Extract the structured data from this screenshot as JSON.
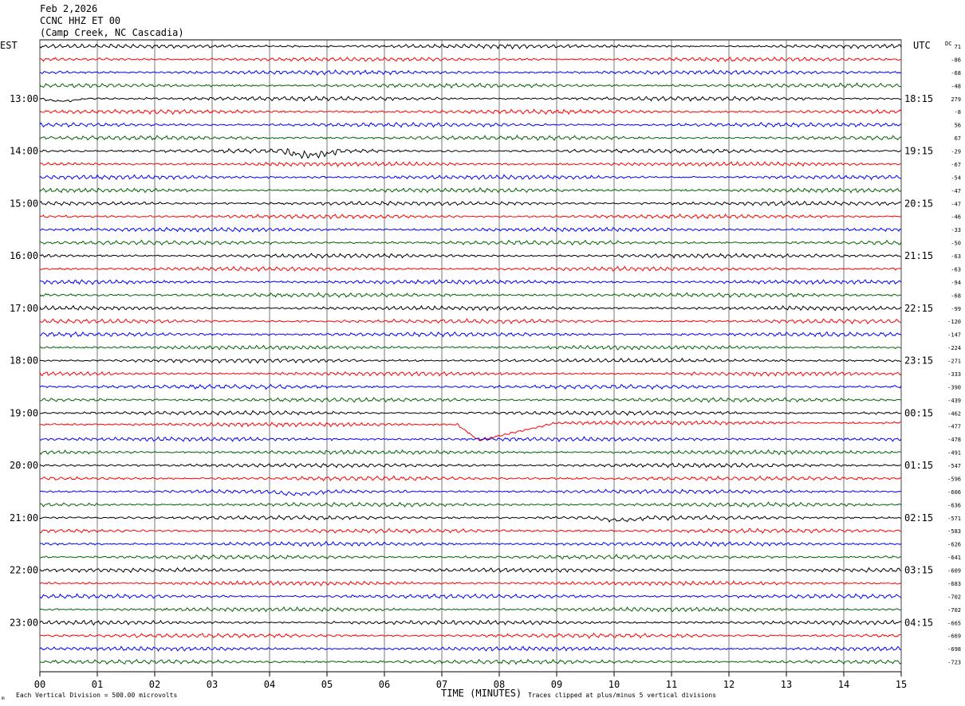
{
  "header": {
    "date": "Feb 2,2026",
    "station": "CCNC HHZ ET 00",
    "location": "(Camp Creek, NC Cascadia)"
  },
  "chart_data": {
    "type": "line",
    "title": "",
    "left_axis_label": "EST",
    "right_axis_label": "UTC",
    "dc_label": "DC",
    "xlabel": "TIME (MINUTES)",
    "x_ticks": [
      "00",
      "01",
      "02",
      "03",
      "04",
      "05",
      "06",
      "07",
      "08",
      "09",
      "10",
      "11",
      "12",
      "13",
      "14",
      "15"
    ],
    "xlim": [
      0,
      15
    ],
    "left_hour_labels": [
      "13:00",
      "14:00",
      "15:00",
      "16:00",
      "17:00",
      "18:00",
      "19:00",
      "20:00",
      "21:00",
      "22:00",
      "23:00"
    ],
    "right_hour_labels": [
      "18:15",
      "19:15",
      "20:15",
      "21:15",
      "22:15",
      "23:15",
      "00:15",
      "01:15",
      "02:15",
      "03:15",
      "04:15"
    ],
    "first_labeled_row": 4,
    "rows_per_hour": 4,
    "dc_offsets": [
      71,
      -86,
      -68,
      -48,
      279,
      -8,
      56,
      67,
      -29,
      -67,
      -54,
      -47,
      -47,
      -46,
      -33,
      -50,
      -63,
      -63,
      -94,
      -68,
      -99,
      -120,
      -147,
      -224,
      -271,
      -333,
      -390,
      -439,
      -462,
      -477,
      -478,
      -491,
      -547,
      -596,
      -606,
      -636,
      -571,
      -583,
      -626,
      -641,
      -609,
      -683,
      -702,
      -702,
      -665,
      -669,
      -698,
      -723
    ],
    "trace_colors": [
      "#000000",
      "#ff0000",
      "#0000ff",
      "#006400"
    ],
    "grid_color": "#000000",
    "footer_left": "Each Vertical Division =  500.00 microvolts",
    "footer_right": "Traces clipped at plus/minus 5 vertical divisions",
    "corner_mark": "m",
    "events": [
      {
        "row": 8,
        "start_min": 4.2,
        "end_min": 5.2,
        "type": "wobble"
      },
      {
        "row": 4,
        "start_min": 0.0,
        "end_min": 0.8,
        "type": "dip"
      },
      {
        "row": 29,
        "start_min": 7.3,
        "end_min": 9.0,
        "type": "offset"
      },
      {
        "row": 36,
        "start_min": 9.6,
        "end_min": 10.6,
        "type": "dip"
      },
      {
        "row": 34,
        "start_min": 4.0,
        "end_min": 5.0,
        "type": "dip"
      }
    ]
  }
}
